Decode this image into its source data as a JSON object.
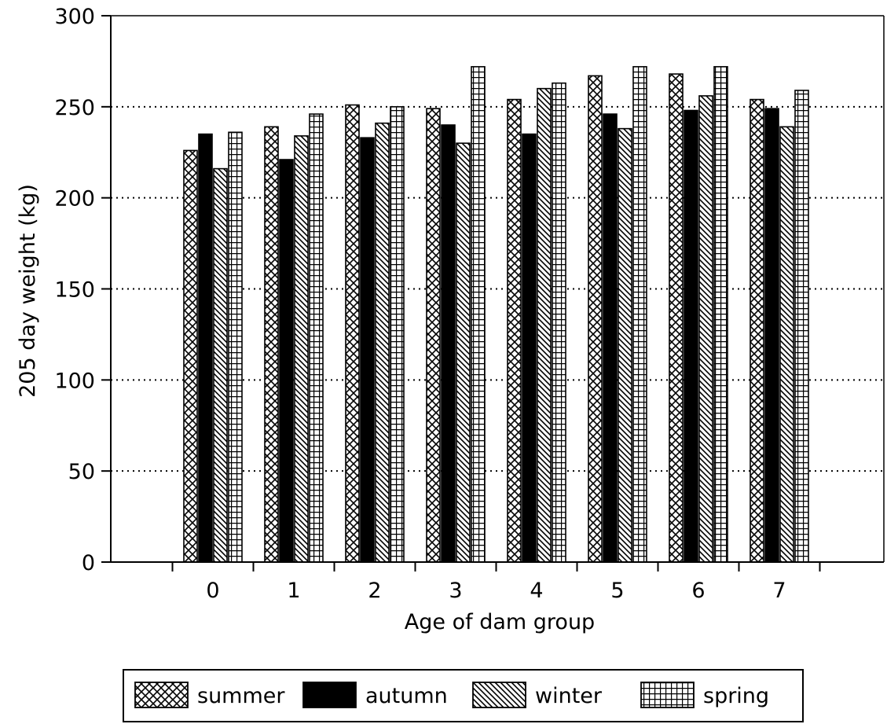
{
  "chart_data": {
    "type": "bar",
    "title": "",
    "xlabel": "Age of dam group",
    "ylabel": "205 day weight (kg)",
    "ylim": [
      0,
      300
    ],
    "yticks": [
      0,
      50,
      100,
      150,
      200,
      250,
      300
    ],
    "grid": "horizontal-dotted",
    "legend_position": "bottom",
    "categories": [
      "0",
      "1",
      "2",
      "3",
      "4",
      "5",
      "6",
      "7"
    ],
    "series": [
      {
        "name": "summer",
        "pattern": "crosshatch",
        "values": [
          226,
          239,
          251,
          249,
          254,
          267,
          268,
          254
        ]
      },
      {
        "name": "autumn",
        "pattern": "solid",
        "values": [
          235,
          221,
          233,
          240,
          235,
          246,
          248,
          249
        ]
      },
      {
        "name": "winter",
        "pattern": "diagonal",
        "values": [
          216,
          234,
          241,
          230,
          260,
          238,
          256,
          239
        ]
      },
      {
        "name": "spring",
        "pattern": "grid",
        "values": [
          236,
          246,
          250,
          272,
          263,
          272,
          272,
          259
        ]
      }
    ],
    "colors": {
      "ink": "#000000",
      "background": "#ffffff"
    }
  }
}
